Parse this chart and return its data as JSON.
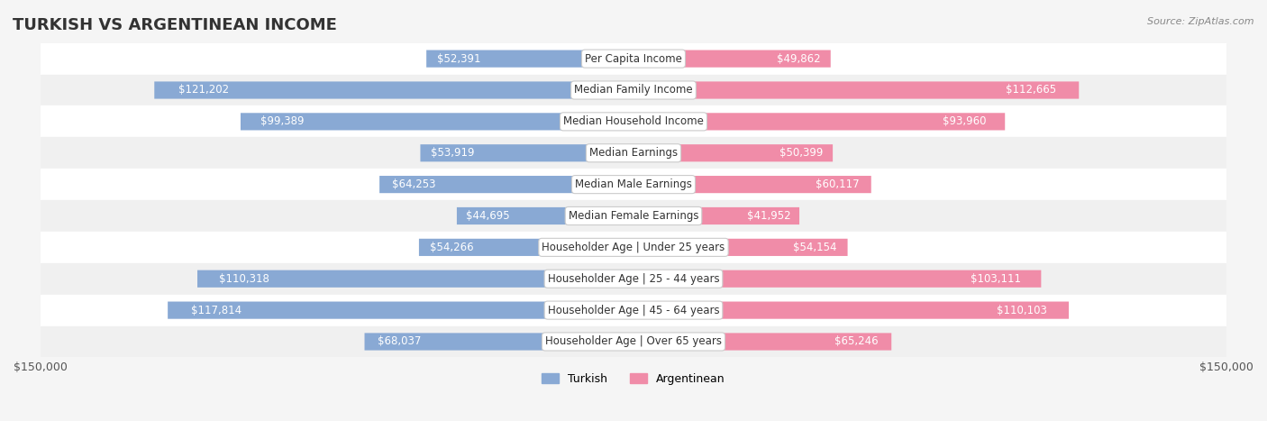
{
  "title": "TURKISH VS ARGENTINEAN INCOME",
  "source": "Source: ZipAtlas.com",
  "categories": [
    "Per Capita Income",
    "Median Family Income",
    "Median Household Income",
    "Median Earnings",
    "Median Male Earnings",
    "Median Female Earnings",
    "Householder Age | Under 25 years",
    "Householder Age | 25 - 44 years",
    "Householder Age | 45 - 64 years",
    "Householder Age | Over 65 years"
  ],
  "turkish_values": [
    52391,
    121202,
    99389,
    53919,
    64253,
    44695,
    54266,
    110318,
    117814,
    68037
  ],
  "argentinean_values": [
    49862,
    112665,
    93960,
    50399,
    60117,
    41952,
    54154,
    103111,
    110103,
    65246
  ],
  "turkish_labels": [
    "$52,391",
    "$121,202",
    "$99,389",
    "$53,919",
    "$64,253",
    "$44,695",
    "$54,266",
    "$110,318",
    "$117,814",
    "$68,037"
  ],
  "argentinean_labels": [
    "$49,862",
    "$112,665",
    "$93,960",
    "$50,399",
    "$60,117",
    "$41,952",
    "$54,154",
    "$103,111",
    "$110,103",
    "$65,246"
  ],
  "turkish_color": "#89a9d4",
  "argentinean_color": "#f08ca8",
  "turkish_label_color_inside": "#ffffff",
  "turkish_label_color_outside": "#555555",
  "argentinean_label_color_inside": "#ffffff",
  "argentinean_label_color_outside": "#555555",
  "max_value": 150000,
  "bar_height": 0.55,
  "bg_color": "#f5f5f5",
  "row_bg_color": "#ffffff",
  "row_alt_bg_color": "#f0f0f0",
  "title_fontsize": 13,
  "label_fontsize": 8.5,
  "category_fontsize": 8.5,
  "axis_label_fontsize": 9,
  "legend_fontsize": 9
}
